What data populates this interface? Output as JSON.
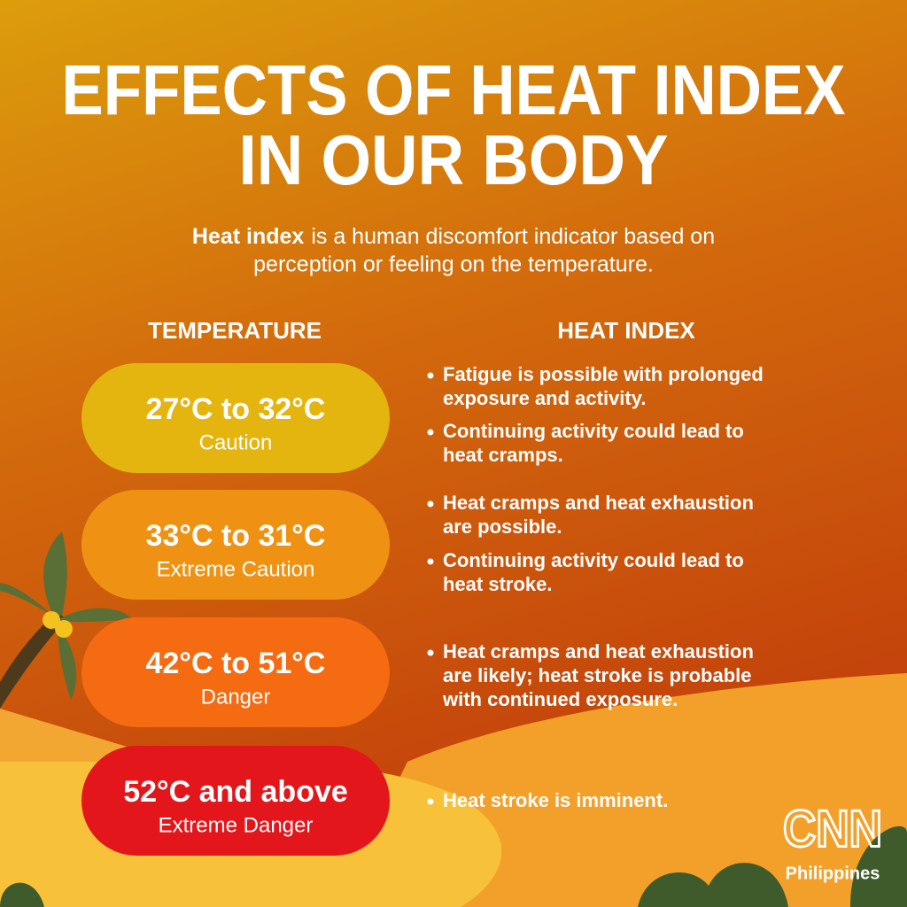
{
  "header": {
    "title": [
      "EFFECTS OF HEAT INDEX",
      "IN OUR BODY"
    ],
    "intro": {
      "bold": "Heat index",
      "lines": [
        "is a human discomfort indicator based on",
        "perception or feeling on the temperature."
      ]
    }
  },
  "columns": [
    "TEMPERATURE",
    "HEAT INDEX"
  ],
  "rows": [
    {
      "range": "27°C to 32°C",
      "level": "Caution",
      "bullets": [
        [
          "Fatigue is possible with prolonged",
          "exposure and activity."
        ],
        [
          "Continuing activity could lead to",
          "heat cramps."
        ]
      ]
    },
    {
      "range": "33°C to 31°C",
      "level": "Extreme Caution",
      "bullets": [
        [
          "Heat cramps and heat exhaustion",
          "are possible."
        ],
        [
          "Continuing activity could lead to",
          "heat stroke."
        ]
      ]
    },
    {
      "range": "42°C to 51°C",
      "level": "Danger",
      "bullets": [
        [
          "Heat cramps and heat exhaustion",
          "are likely; heat stroke is probable",
          "with continued exposure."
        ]
      ]
    },
    {
      "range": "52°C and above",
      "level": "Extreme Danger",
      "bullets": [
        [
          "Heat stroke is imminent."
        ]
      ]
    }
  ],
  "logo": {
    "brand": "CNN",
    "region": "Philippines"
  }
}
